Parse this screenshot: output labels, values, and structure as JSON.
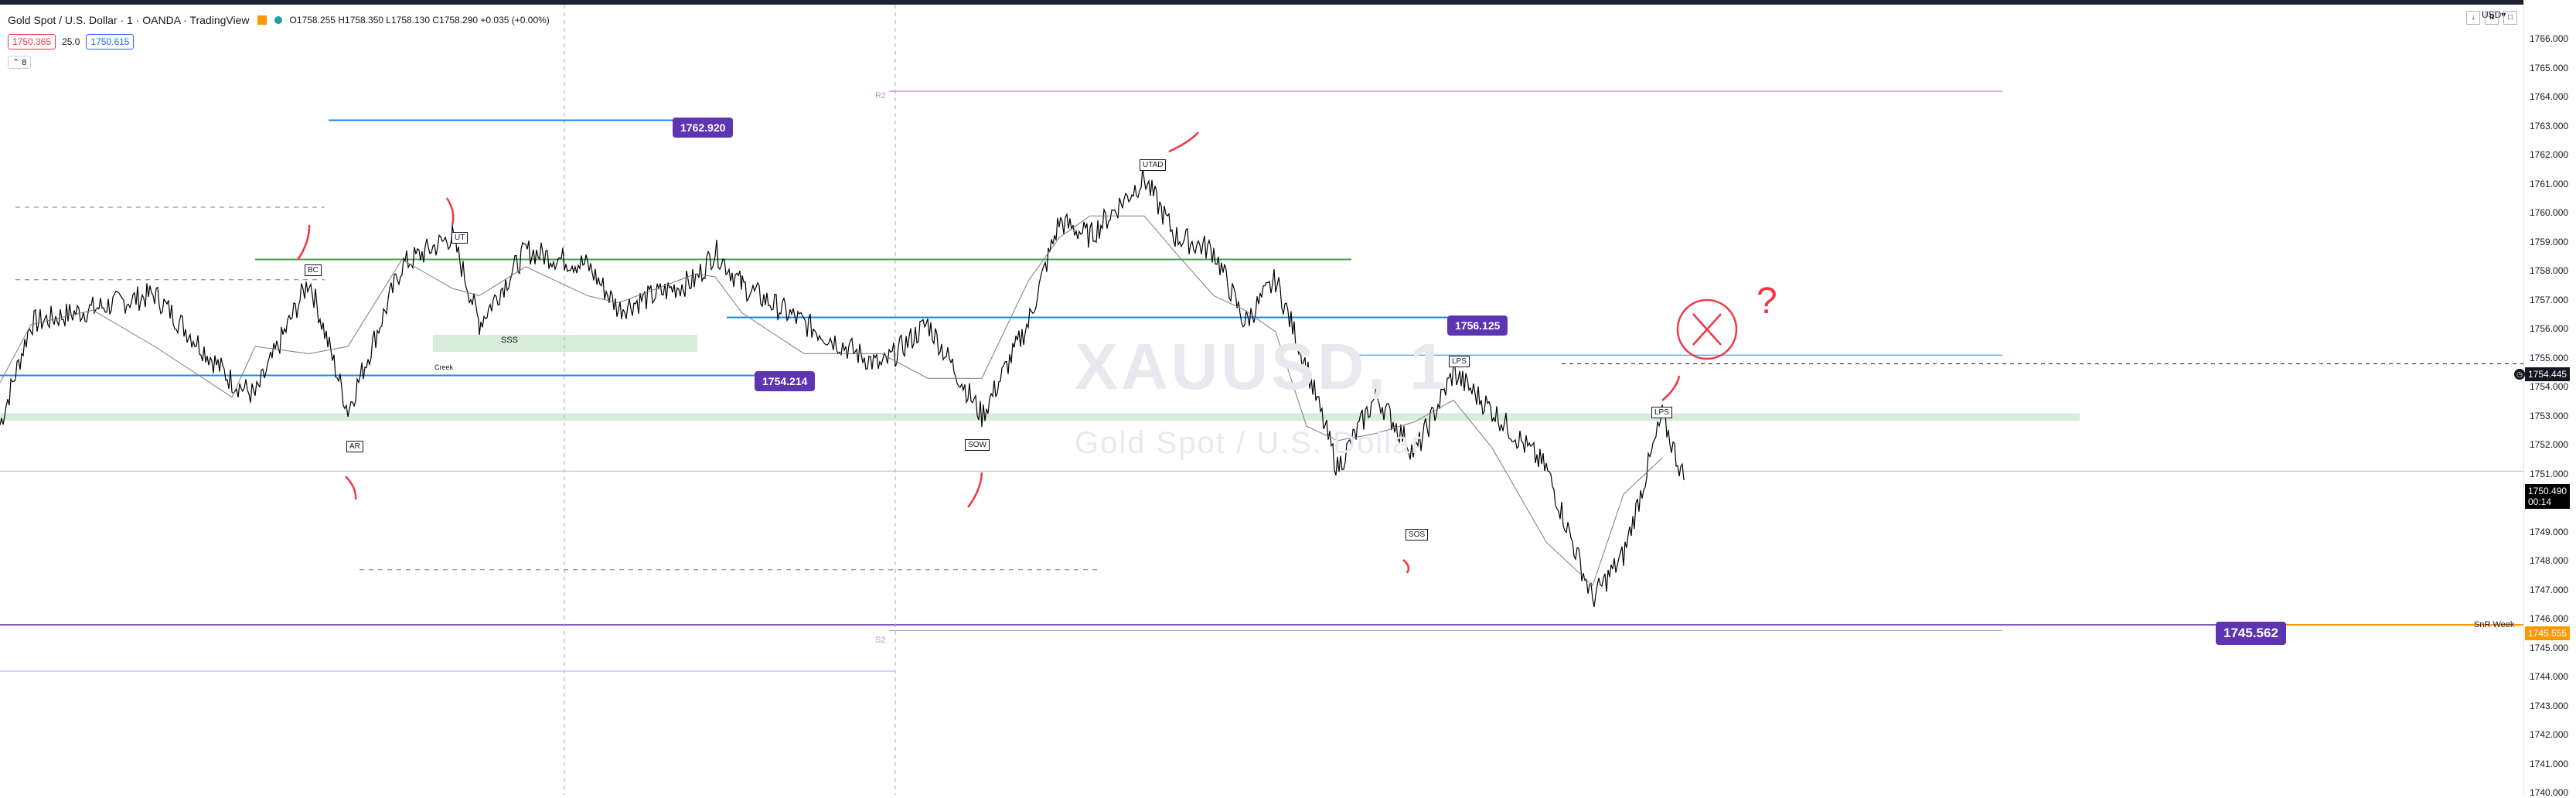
{
  "window": {
    "symbol_title": "Gold Spot / U.S. Dollar · 1 · OANDA · TradingView",
    "ohlc": "O1758.255 H1758.350 L1758.130 C1758.290 +0.035 (+0.00%)",
    "currency": "USD",
    "currency_arrow": "▾",
    "window_buttons": [
      "↓",
      "⇅",
      "□"
    ]
  },
  "order": {
    "sell_price": "1750.365",
    "spread": "25.0",
    "buy_price": "1750.615"
  },
  "indicator_count": "8",
  "watermark": {
    "symbol": "XAUUSD, 1",
    "description": "Gold Spot / U.S. Dollar"
  },
  "price_axis": {
    "ticks": [
      "1766.000",
      "1765.000",
      "1764.000",
      "1763.000",
      "1762.000",
      "1761.000",
      "1760.000",
      "1759.000",
      "1758.000",
      "1757.000",
      "1756.000",
      "1755.000",
      "1754.000",
      "1753.000",
      "1752.000",
      "1751.000",
      "1750.000",
      "1749.000",
      "1748.000",
      "1747.000",
      "1746.000",
      "1745.000",
      "1744.000",
      "1743.000",
      "1742.000",
      "1741.000",
      "1740.000"
    ],
    "crosshair_price": "1754.445",
    "last_price": "1750.490",
    "countdown": "00:14",
    "snr_price": "1745.555",
    "snr_label": "SnR Week"
  },
  "price_labels": {
    "p1762": "1762.920",
    "p1756": "1756.125",
    "p1754": "1754.214",
    "p1745": "1745.562"
  },
  "wyckoff_labels": {
    "bc": "BC",
    "ut": "UT",
    "ar": "AR",
    "sow": "SOW",
    "utad": "UTAD",
    "lps1": "LPS",
    "sos": "SOS",
    "lps2": "LPS",
    "sss": "SSS",
    "creek": "Creek",
    "r2": "R2",
    "s2": "S2"
  },
  "annotations": {
    "question": "?"
  },
  "colors": {
    "accent_purple": "#5e35b1",
    "support_line": "#1e88e5",
    "zone_green": "#c8e6c9",
    "ema_green": "#43a047",
    "hand_red": "#f23645",
    "snr_orange": "#ff9800"
  }
}
